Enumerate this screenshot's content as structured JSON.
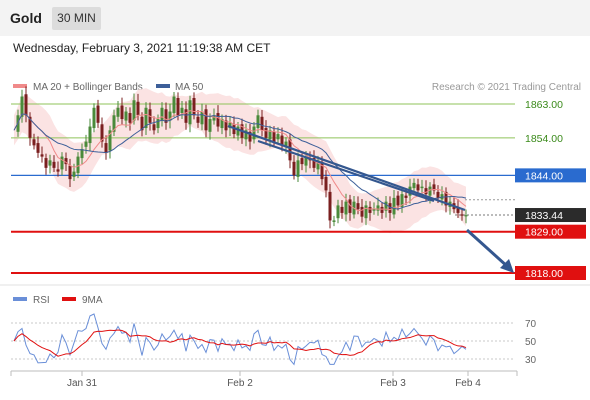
{
  "header": {
    "instrument": "Gold",
    "timeframe": "30 MIN",
    "datetime": "Wednesday, February 3, 2021 11:19:38 AM CET"
  },
  "legend": {
    "ma20": "MA 20 + Bollinger Bands",
    "ma50": "MA 50",
    "credit": "Research © 2021 Trading Central",
    "rsi": "RSI",
    "rsi_ma": "9MA"
  },
  "colors": {
    "bullish": "#4a8a3a",
    "bearish": "#7a1f1f",
    "bollinger_fill": "#fbe3e3",
    "ma20": "#f08a8a",
    "ma50": "#3d5f99",
    "trendline": "#34578f",
    "resistance_green": "#8fc35a",
    "pivot_blue": "#2a6bcf",
    "support_red": "#e01010",
    "last_price": "#2b2b2b"
  },
  "chart_data": [
    {
      "type": "candlestick",
      "title": "",
      "x_ticks": [
        "Jan 31",
        "Feb 2",
        "Feb 3",
        "Feb 4"
      ],
      "levels": [
        {
          "label": "1863.00",
          "value": 1863.0,
          "kind": "resistance"
        },
        {
          "label": "1854.00",
          "value": 1854.0,
          "kind": "resistance"
        },
        {
          "label": "1844.00",
          "value": 1844.0,
          "kind": "pivot"
        },
        {
          "label": "1833.44",
          "value": 1833.44,
          "kind": "last-price"
        },
        {
          "label": "1829.00",
          "value": 1829.0,
          "kind": "support"
        },
        {
          "label": "1818.00",
          "value": 1818.0,
          "kind": "support"
        }
      ],
      "scenario": "down-arrow-toward-1818"
    },
    {
      "type": "line",
      "title": "",
      "series": [
        {
          "name": "RSI"
        },
        {
          "name": "9MA"
        }
      ],
      "y_ticks": [
        "70",
        "50",
        "30"
      ],
      "levels": [
        70,
        50,
        30
      ]
    }
  ]
}
